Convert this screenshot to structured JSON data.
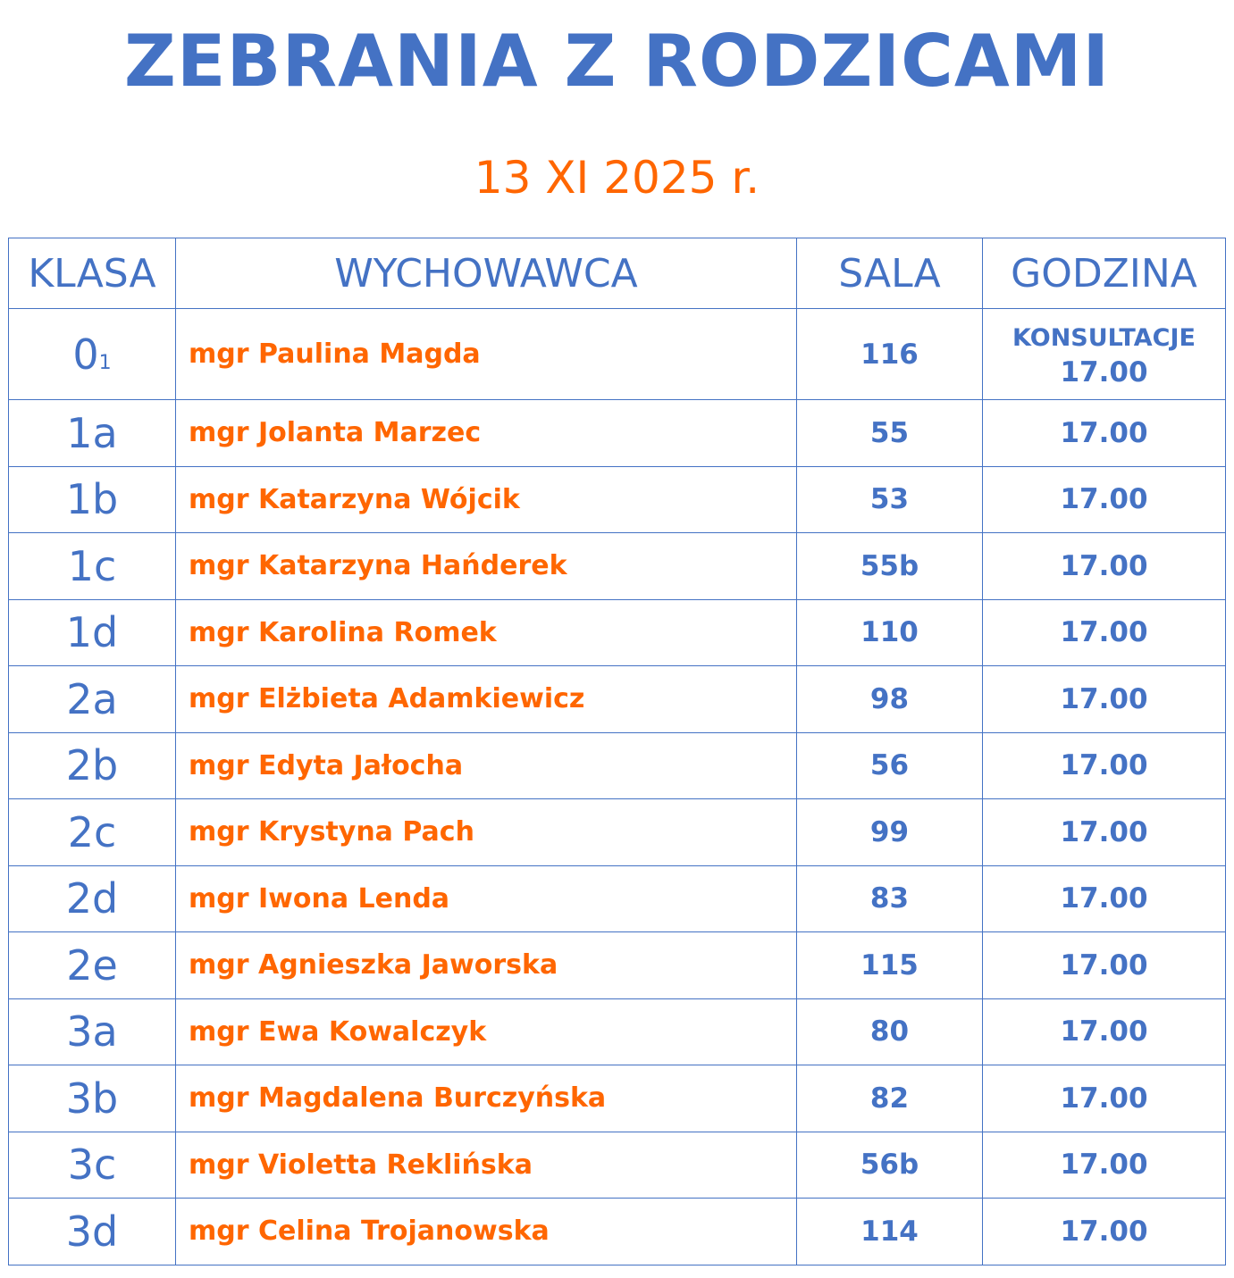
{
  "title": "ZEBRANIA Z RODZICAMI",
  "date": "13 XI 2025 r.",
  "colors": {
    "title": "#4472C4",
    "accent": "#FF6600",
    "border": "#4472C4"
  },
  "headers": [
    "KLASA",
    "WYCHOWAWCA",
    "SALA",
    "GODZINA"
  ],
  "first_row": {
    "klasa": "0",
    "klasa_sub": "1",
    "wychowawca": "mgr Paulina Magda",
    "sala": "116",
    "note": "KONSULTACJE",
    "godzina": "17.00"
  },
  "rows": [
    {
      "klasa": "1a",
      "wychowawca": "mgr Jolanta Marzec",
      "sala": "55",
      "godzina": "17.00"
    },
    {
      "klasa": "1b",
      "wychowawca": "mgr Katarzyna Wójcik",
      "sala": "53",
      "godzina": "17.00"
    },
    {
      "klasa": "1c",
      "wychowawca": "mgr Katarzyna Hańderek",
      "sala": "55b",
      "godzina": "17.00"
    },
    {
      "klasa": "1d",
      "wychowawca": "mgr Karolina Romek",
      "sala": "110",
      "godzina": "17.00"
    },
    {
      "klasa": "2a",
      "wychowawca": "mgr Elżbieta Adamkiewicz",
      "sala": "98",
      "godzina": "17.00"
    },
    {
      "klasa": "2b",
      "wychowawca": "mgr Edyta Jałocha",
      "sala": "56",
      "godzina": "17.00"
    },
    {
      "klasa": "2c",
      "wychowawca": "mgr Krystyna Pach",
      "sala": "99",
      "godzina": "17.00"
    },
    {
      "klasa": "2d",
      "wychowawca": "mgr Iwona Lenda",
      "sala": "83",
      "godzina": "17.00"
    },
    {
      "klasa": "2e",
      "wychowawca": "mgr Agnieszka Jaworska",
      "sala": "115",
      "godzina": "17.00"
    },
    {
      "klasa": "3a",
      "wychowawca": "mgr Ewa Kowalczyk",
      "sala": "80",
      "godzina": "17.00"
    },
    {
      "klasa": "3b",
      "wychowawca": "mgr Magdalena Burczyńska",
      "sala": "82",
      "godzina": "17.00"
    },
    {
      "klasa": "3c",
      "wychowawca": "mgr Violetta Reklińska",
      "sala": "56b",
      "godzina": "17.00"
    },
    {
      "klasa": "3d",
      "wychowawca": "mgr Celina Trojanowska",
      "sala": "114",
      "godzina": "17.00"
    }
  ]
}
